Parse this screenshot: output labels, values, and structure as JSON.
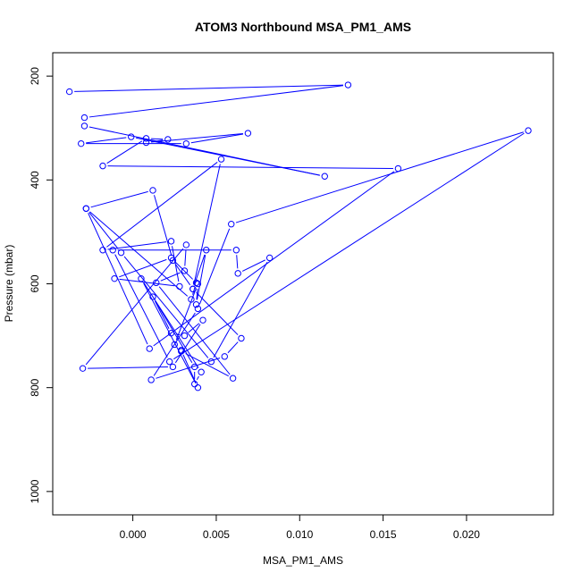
{
  "chart_data": {
    "type": "line",
    "title": "ATOM3 Northbound MSA_PM1_AMS",
    "xlabel": "MSA_PM1_AMS",
    "ylabel": "Pressure (mbar)",
    "xlim": [
      -0.0048,
      0.0252
    ],
    "ylim": [
      1045,
      155
    ],
    "y_reversed": true,
    "x_ticks": [
      0.0,
      0.005,
      0.01,
      0.015,
      0.02
    ],
    "x_tick_labels": [
      "0.000",
      "0.005",
      "0.010",
      "0.015",
      "0.020"
    ],
    "y_ticks": [
      200,
      400,
      600,
      800,
      1000
    ],
    "y_tick_labels": [
      "200",
      "400",
      "600",
      "800",
      "1000"
    ],
    "grid": false,
    "markers": "open-circle",
    "color": "#0000ff",
    "series": [
      {
        "x": [
          0.0029,
          0.0039,
          0.0005,
          0.0041,
          0.0037,
          0.0037,
          0.0012,
          0.0023,
          0.0031,
          0.0042,
          0.0024,
          -0.003,
          0.0032,
          0.0031,
          0.0014,
          0.006,
          0.0029,
          0.0025,
          0.0039,
          0.0038,
          0.0044,
          0.0036,
          0.0065,
          0.0055,
          0.0011,
          0.0039,
          0.0059,
          0.0237,
          0.0022,
          -0.0012,
          0.0062,
          0.0063,
          0.0082,
          0.0047,
          -0.0007,
          -0.0028,
          0.0035,
          0.0038,
          0.0023,
          -0.0011,
          0.0028,
          0.0023,
          -0.0018,
          0.0053,
          0.0036,
          0.0024,
          0.0012,
          -0.0028,
          0.001,
          0.0159,
          -0.0018,
          0.0008,
          0.0021,
          0.0008,
          0.0069,
          0.0032,
          -0.0031,
          -0.0001,
          0.0115,
          -0.0029,
          -0.0029,
          0.0129,
          -0.0038
        ],
        "y": [
          728,
          800,
          590,
          770,
          793,
          760,
          625,
          695,
          700,
          670,
          760,
          763,
          525,
          575,
          598,
          782,
          730,
          717,
          600,
          640,
          535,
          610,
          705,
          740,
          785,
          648,
          485,
          305,
          750,
          535,
          535,
          580,
          550,
          750,
          540,
          455,
          630,
          598,
          550,
          590,
          605,
          518,
          535,
          360,
          610,
          555,
          420,
          455,
          725,
          378,
          373,
          320,
          322,
          328,
          310,
          330,
          330,
          317,
          393,
          296,
          280,
          217,
          230
        ]
      }
    ]
  }
}
